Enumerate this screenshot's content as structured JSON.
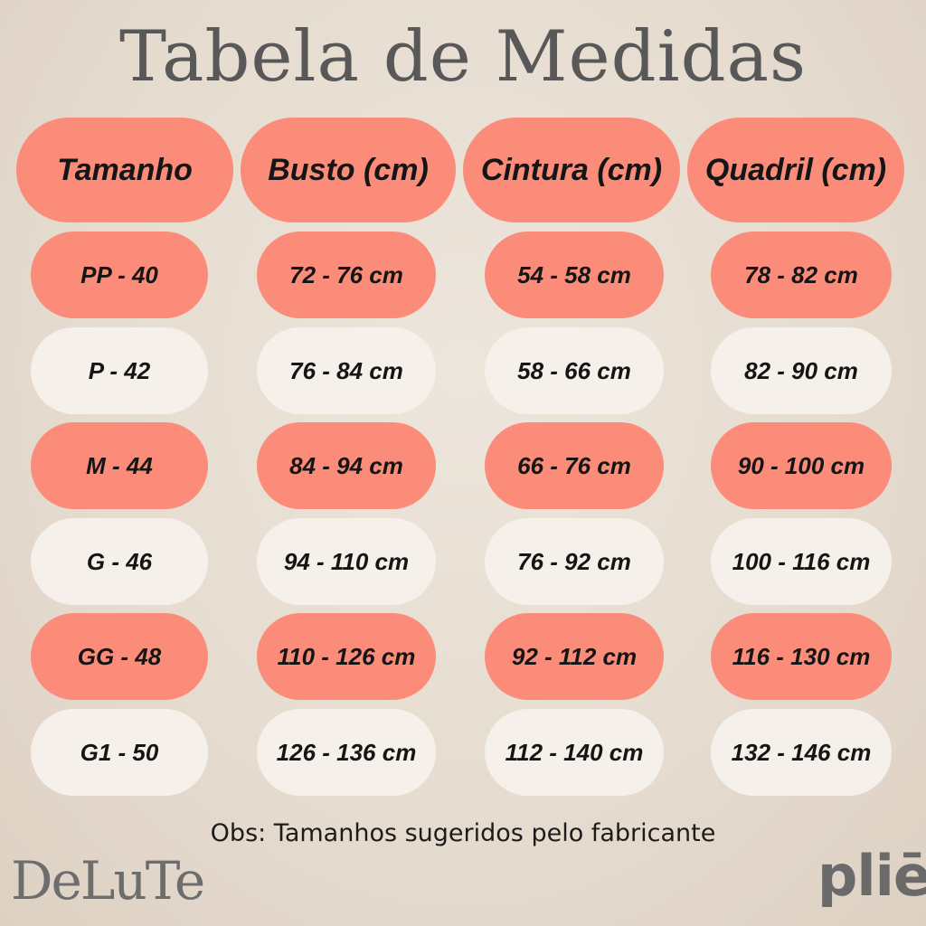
{
  "title": "Tabela de Medidas",
  "colors": {
    "salmon": "#fb8c79",
    "cream": "#f5f0e9",
    "text": "#151515",
    "title": "#585858"
  },
  "headers": [
    "Tamanho",
    "Busto (cm)",
    "Cintura (cm)",
    "Quadril (cm)"
  ],
  "rows": [
    {
      "style": "salmon",
      "cells": [
        "PP - 40",
        "72 - 76 cm",
        "54 - 58 cm",
        "78 - 82 cm"
      ]
    },
    {
      "style": "cream",
      "cells": [
        "P - 42",
        "76 - 84 cm",
        "58 - 66 cm",
        "82 - 90 cm"
      ]
    },
    {
      "style": "salmon",
      "cells": [
        "M - 44",
        "84 - 94 cm",
        "66 - 76 cm",
        "90 - 100 cm"
      ]
    },
    {
      "style": "cream",
      "cells": [
        "G - 46",
        "94 - 110 cm",
        "76 - 92 cm",
        "100 - 116 cm"
      ]
    },
    {
      "style": "salmon",
      "cells": [
        "GG - 48",
        "110 - 126 cm",
        "92 - 112 cm",
        "116 - 130 cm"
      ]
    },
    {
      "style": "cream",
      "cells": [
        "G1 - 50",
        "126 - 136 cm",
        "112 - 140 cm",
        "132 - 146 cm"
      ]
    }
  ],
  "note": "Obs: Tamanhos sugeridos pelo fabricante",
  "brands": {
    "left": "DeLuTe",
    "right": "pliē"
  }
}
